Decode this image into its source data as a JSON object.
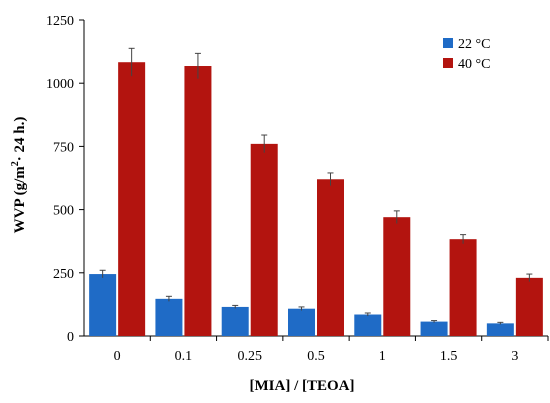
{
  "chart_data": {
    "type": "bar",
    "title": "",
    "xlabel": "[MIA] / [TEOA]",
    "ylabel_main": "WVP  (g/m",
    "ylabel_sup": "2",
    "ylabel_tail": "· 24 h.)",
    "categories": [
      "0",
      "0.1",
      "0.25",
      "0.5",
      "1",
      "1.5",
      "3"
    ],
    "ylim": [
      0,
      1250
    ],
    "yticks": [
      "0",
      "250",
      "500",
      "750",
      "1000",
      "1250"
    ],
    "grid": false,
    "legend_position": "top-right",
    "series": [
      {
        "name": "22 °C",
        "color": "#1f6bc6",
        "values": [
          245,
          147,
          115,
          108,
          85,
          57,
          50
        ],
        "errors": [
          15,
          10,
          6,
          7,
          6,
          4,
          4
        ]
      },
      {
        "name": "40 °C",
        "color": "#b3140f",
        "values": [
          1083,
          1068,
          760,
          620,
          470,
          383,
          230
        ],
        "errors": [
          55,
          50,
          35,
          25,
          25,
          18,
          15
        ]
      }
    ]
  }
}
